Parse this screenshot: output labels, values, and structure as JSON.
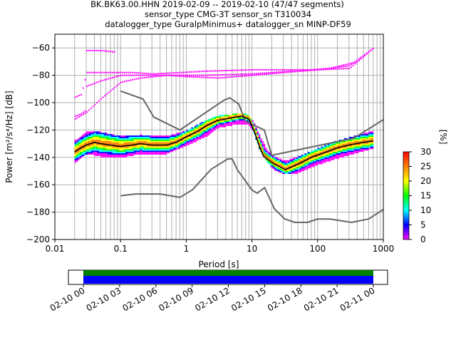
{
  "title_lines": [
    "BK.BK63.00.HHN   2019-02-09 -- 2019-02-10  (47/47 segments)",
    "sensor_type CMG-3T sensor_sn T310034",
    "datalogger_type GuralpMinimus+ datalogger_sn MINP-DF59"
  ],
  "colorbar": {
    "label": "[%]",
    "ticks": [
      "0",
      "5",
      "10",
      "15",
      "20",
      "25",
      "30"
    ],
    "range": [
      0,
      30
    ],
    "colors": [
      "#ffffff",
      "#ff00ff",
      "#0000ff",
      "#00ffff",
      "#00ff00",
      "#ffff00",
      "#ff8000",
      "#ff0000"
    ]
  },
  "timeline": {
    "tick_labels": [
      "02-10 00",
      "02-10 03",
      "02-10 06",
      "02-10 09",
      "02-10 12",
      "02-10 15",
      "02-10 18",
      "02-10 21",
      "02-11 00"
    ],
    "data_coverage_color": "#008000",
    "gaps_color": "#0000ff",
    "coverage_start": "02-10 00",
    "coverage_end": "02-11 00"
  },
  "chart_data": {
    "type": "heatmap",
    "title": "BK.BK63.00.HHN   2019-02-09 -- 2019-02-10  (47/47 segments)",
    "xlabel": "Period [s]",
    "ylabel": "Power [m²/s⁴/Hz] [dB]",
    "xscale": "log",
    "xlim": [
      0.01,
      1000
    ],
    "ylim": [
      -200,
      -50
    ],
    "x_tick_labels": [
      "0.01",
      "0.1",
      "1",
      "10",
      "100",
      "1000"
    ],
    "y_tick_labels": [
      "−200",
      "−180",
      "−160",
      "−140",
      "−120",
      "−100",
      "−80",
      "−60"
    ],
    "grid": true,
    "noise_model_high": {
      "x": [
        0.1,
        0.22,
        0.32,
        0.8,
        3.8,
        4.6,
        6.3,
        7.9,
        15.4,
        20,
        354.8,
        1000
      ],
      "y": [
        -91.5,
        -97.4,
        -110.5,
        -120,
        -98,
        -96.5,
        -101,
        -113.5,
        -120,
        -138.5,
        -126,
        -112.5
      ]
    },
    "noise_model_low": {
      "x": [
        0.1,
        0.17,
        0.4,
        0.8,
        1.24,
        2.4,
        4.3,
        5,
        6,
        10,
        12,
        15.6,
        21.9,
        31.6,
        45,
        70,
        101,
        154,
        328,
        600,
        1000
      ],
      "y": [
        -168,
        -166.7,
        -166.7,
        -169.2,
        -163.7,
        -148.6,
        -141.1,
        -141.1,
        -149,
        -163.8,
        -166.2,
        -162.1,
        -177.5,
        -185,
        -187.5,
        -187.5,
        -185,
        -185,
        -187.5,
        -185,
        -178
      ]
    },
    "mean_psd": {
      "x": [
        0.02,
        0.025,
        0.03,
        0.04,
        0.05,
        0.07,
        0.1,
        0.15,
        0.2,
        0.3,
        0.5,
        0.7,
        1,
        1.5,
        2,
        3,
        4,
        5,
        7,
        9,
        11,
        13,
        15,
        18,
        22,
        27,
        32,
        40,
        55,
        80,
        120,
        200,
        300,
        500,
        700
      ],
      "y": [
        -136,
        -133,
        -131,
        -129,
        -130,
        -131,
        -132,
        -131,
        -130,
        -131,
        -131,
        -129,
        -125,
        -121,
        -117,
        -113,
        -112,
        -111,
        -110,
        -112,
        -122,
        -132,
        -139,
        -142,
        -145,
        -147,
        -149,
        -147,
        -144,
        -140,
        -137,
        -133,
        -131,
        -129,
        -128
      ]
    },
    "psd_band_upper": {
      "x": [
        0.02,
        0.03,
        0.05,
        0.1,
        0.2,
        0.5,
        1,
        2,
        3,
        5,
        8,
        10,
        13,
        17,
        22,
        30,
        50,
        100,
        200,
        400,
        700
      ],
      "y": [
        -128,
        -121,
        -122,
        -125,
        -124,
        -125,
        -121,
        -113,
        -110,
        -109,
        -109,
        -113,
        -125,
        -136,
        -140,
        -143,
        -140,
        -134,
        -128,
        -124,
        -121
      ]
    },
    "psd_band_lower": {
      "x": [
        0.02,
        0.03,
        0.05,
        0.1,
        0.2,
        0.5,
        1,
        2,
        3,
        5,
        8,
        10,
        13,
        17,
        22,
        30,
        50,
        100,
        200,
        400,
        700
      ],
      "y": [
        -144,
        -138,
        -140,
        -141,
        -138,
        -138,
        -132,
        -125,
        -119,
        -117,
        -116,
        -120,
        -136,
        -145,
        -150,
        -153,
        -152,
        -146,
        -141,
        -137,
        -134
      ]
    },
    "outlier_traces": [
      {
        "x": [
          0.02,
          0.025,
          0.03,
          0.05,
          0.08,
          0.15,
          0.3,
          0.8,
          2,
          10,
          30,
          100,
          300,
          700
        ],
        "y": [
          -96,
          -94,
          -78,
          -78,
          -78,
          -78,
          -79,
          -78,
          -77,
          -76,
          -76,
          -76,
          -75,
          -60
        ]
      },
      {
        "x": [
          0.03,
          0.05,
          0.1,
          0.2,
          0.5,
          1,
          3,
          10,
          30,
          100,
          300,
          700
        ],
        "y": [
          -88,
          -84,
          -80,
          -80,
          -80,
          -81,
          -82,
          -80,
          -78,
          -76,
          -73,
          -60
        ]
      },
      {
        "x": [
          0.02,
          0.03,
          0.05,
          0.1,
          0.2,
          0.5,
          2,
          10,
          40,
          150,
          400,
          700
        ],
        "y": [
          -112,
          -107,
          -97,
          -85,
          -82,
          -80,
          -80,
          -79,
          -77,
          -75,
          -70,
          -60
        ]
      },
      {
        "x": [
          0.02,
          0.025,
          0.03
        ],
        "y": [
          -110,
          -108,
          -105
        ]
      },
      {
        "x": [
          0.03,
          0.05,
          0.08
        ],
        "y": [
          -62,
          -62,
          -63
        ]
      }
    ]
  }
}
